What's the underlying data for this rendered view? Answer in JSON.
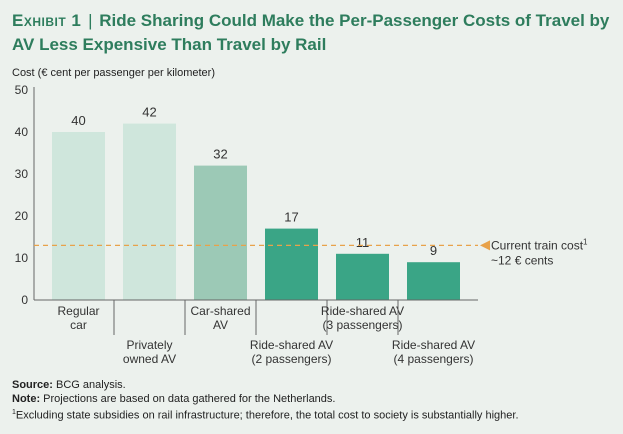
{
  "title": {
    "label": "Exhibit 1",
    "separator": "|",
    "text": "Ride Sharing Could Make the Per-Passenger Costs of Travel by AV Less Expensive Than Travel by Rail"
  },
  "notes": {
    "source_label": "Source:",
    "source_text": "BCG analysis.",
    "note_label": "Note:",
    "note_text": "Projections are based on data gathered for the Netherlands.",
    "footnote_marker": "1",
    "footnote_text": "Excluding state subsidies on rail infrastructure; therefore, the total cost to society is substantially higher."
  },
  "chart_data": {
    "type": "bar",
    "ylabel": "Cost (€ cent per passenger per kilometer)",
    "ylim": [
      0,
      50
    ],
    "yticks": [
      0,
      10,
      20,
      30,
      40,
      50
    ],
    "grid": false,
    "categories": [
      "Regular car",
      "Privately owned AV",
      "Car-shared AV",
      "Ride-shared AV (2 passengers)",
      "Ride-shared AV (3 passengers)",
      "Ride-shared AV (4 passengers)"
    ],
    "category_lines": [
      [
        "Regular",
        "car"
      ],
      [
        "Privately",
        "owned AV"
      ],
      [
        "Car-shared",
        "AV"
      ],
      [
        "Ride-shared AV",
        "(2 passengers)"
      ],
      [
        "Ride-shared AV",
        "(3 passengers)"
      ],
      [
        "Ride-shared AV",
        "(4 passengers)"
      ]
    ],
    "label_row": [
      "upper",
      "lower",
      "upper",
      "lower",
      "upper",
      "lower"
    ],
    "values": [
      40,
      42,
      32,
      17,
      11,
      9
    ],
    "value_labels": [
      "40",
      "42",
      "32",
      "17",
      "11",
      "9"
    ],
    "colors": [
      "#cfe6dc",
      "#cfe6dc",
      "#9cc9b6",
      "#3aa586",
      "#3aa586",
      "#3aa586"
    ],
    "reference_line": {
      "value": 13,
      "label_line1": "Current train cost",
      "label_sup": "1",
      "label_line2": "~12 € cents",
      "color": "#e8a24a"
    }
  }
}
